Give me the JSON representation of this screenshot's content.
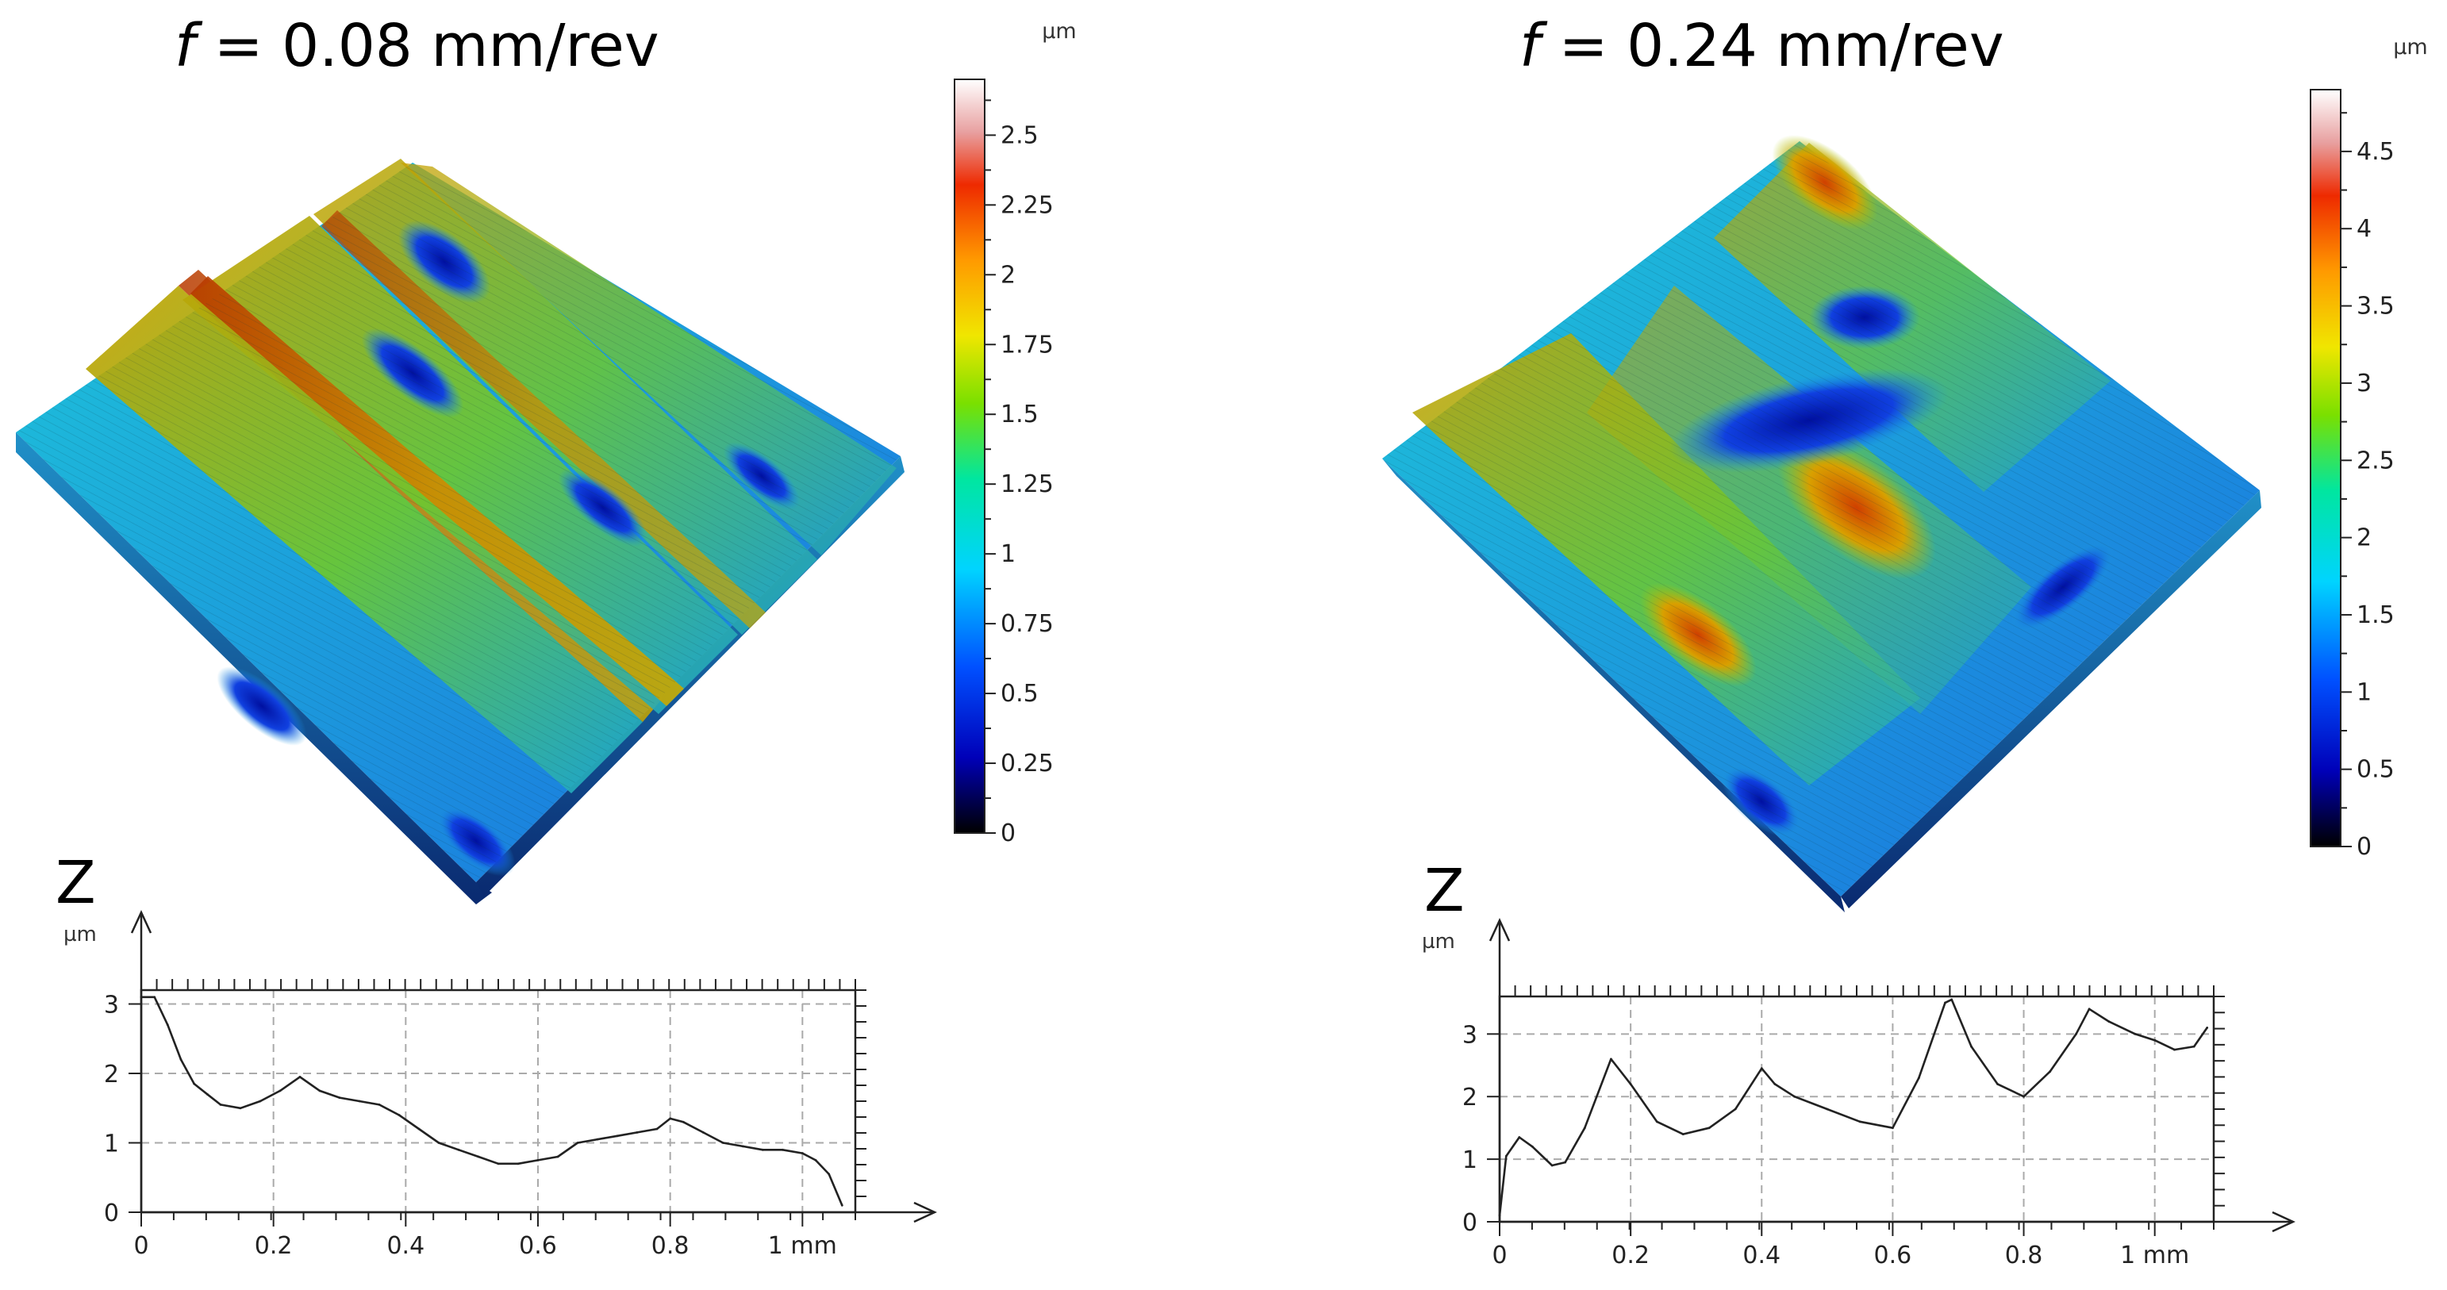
{
  "panels": [
    {
      "title_var": "f",
      "title_rest": " = 0.08 mm/rev",
      "colorbar": {
        "unit": "µm",
        "min": 0,
        "max": 2.7,
        "ticks": [
          0,
          0.25,
          0.5,
          0.75,
          1,
          1.25,
          1.5,
          1.75,
          2,
          2.25,
          2.5
        ],
        "tick_labels": [
          "0",
          "0.25",
          "0.5",
          "0.75",
          "1",
          "1.25",
          "1.5",
          "1.75",
          "2",
          "2.25",
          "2.5"
        ]
      },
      "surface": {
        "kind": "3d-surface-map",
        "ridges": 4,
        "peak_value": 2.1
      },
      "profile": {
        "axis_label": "Z",
        "y_unit": "µm",
        "xlim": [
          0,
          1.08
        ],
        "ylim": [
          0,
          3.2
        ],
        "x_ticks": [
          0,
          0.2,
          0.4,
          0.6,
          0.8,
          1
        ],
        "x_tick_labels": [
          "0",
          "0.2",
          "0.4",
          "0.6",
          "0.8",
          "1 mm"
        ],
        "y_ticks": [
          0,
          1,
          2,
          3
        ],
        "y_tick_labels": [
          "0",
          "1",
          "2",
          "3"
        ]
      }
    },
    {
      "title_var": "f",
      "title_rest": " = 0.24 mm/rev",
      "colorbar": {
        "unit": "µm",
        "min": 0,
        "max": 4.9,
        "ticks": [
          0,
          0.5,
          1,
          1.5,
          2,
          2.5,
          3,
          3.5,
          4,
          4.5
        ],
        "tick_labels": [
          "0",
          "0.5",
          "1",
          "1.5",
          "2",
          "2.5",
          "3",
          "3.5",
          "4",
          "4.5"
        ]
      },
      "surface": {
        "kind": "3d-surface-map",
        "ridges": 4,
        "peak_value": 4.2
      },
      "profile": {
        "axis_label": "Z",
        "y_unit": "µm",
        "xlim": [
          0,
          1.09
        ],
        "ylim": [
          0,
          3.6
        ],
        "x_ticks": [
          0,
          0.2,
          0.4,
          0.6,
          0.8,
          1
        ],
        "x_tick_labels": [
          "0",
          "0.2",
          "0.4",
          "0.6",
          "0.8",
          "1 mm"
        ],
        "y_ticks": [
          0,
          1,
          2,
          3
        ],
        "y_tick_labels": [
          "0",
          "1",
          "2",
          "3"
        ]
      }
    }
  ],
  "chart_data": [
    {
      "type": "line",
      "title": "f = 0.08 mm/rev",
      "xlabel": "mm",
      "ylabel": "Z (µm)",
      "xlim": [
        0,
        1.08
      ],
      "ylim": [
        0,
        3.2
      ],
      "grid": true,
      "x": [
        0,
        0.02,
        0.04,
        0.06,
        0.08,
        0.1,
        0.12,
        0.15,
        0.18,
        0.21,
        0.24,
        0.27,
        0.3,
        0.33,
        0.36,
        0.39,
        0.42,
        0.45,
        0.48,
        0.51,
        0.54,
        0.57,
        0.6,
        0.63,
        0.66,
        0.69,
        0.72,
        0.75,
        0.78,
        0.8,
        0.82,
        0.85,
        0.88,
        0.91,
        0.94,
        0.97,
        1.0,
        1.02,
        1.04,
        1.06
      ],
      "values": [
        3.1,
        3.1,
        2.7,
        2.2,
        1.85,
        1.7,
        1.55,
        1.5,
        1.6,
        1.75,
        1.95,
        1.75,
        1.65,
        1.6,
        1.55,
        1.4,
        1.2,
        1.0,
        0.9,
        0.8,
        0.7,
        0.7,
        0.75,
        0.8,
        1.0,
        1.05,
        1.1,
        1.15,
        1.2,
        1.35,
        1.3,
        1.15,
        1.0,
        0.95,
        0.9,
        0.9,
        0.85,
        0.75,
        0.55,
        0.1
      ]
    },
    {
      "type": "line",
      "title": "f = 0.24 mm/rev",
      "xlabel": "mm",
      "ylabel": "Z (µm)",
      "xlim": [
        0,
        1.09
      ],
      "ylim": [
        0,
        3.6
      ],
      "grid": true,
      "x": [
        0,
        0.01,
        0.03,
        0.05,
        0.08,
        0.1,
        0.13,
        0.17,
        0.2,
        0.24,
        0.28,
        0.32,
        0.36,
        0.4,
        0.42,
        0.45,
        0.5,
        0.55,
        0.6,
        0.64,
        0.68,
        0.69,
        0.72,
        0.76,
        0.8,
        0.84,
        0.88,
        0.9,
        0.93,
        0.97,
        1.0,
        1.03,
        1.06,
        1.08
      ],
      "values": [
        0.1,
        1.05,
        1.35,
        1.2,
        0.9,
        0.95,
        1.5,
        2.6,
        2.2,
        1.6,
        1.4,
        1.5,
        1.8,
        2.45,
        2.2,
        2.0,
        1.8,
        1.6,
        1.5,
        2.3,
        3.5,
        3.55,
        2.8,
        2.2,
        2.0,
        2.4,
        3.0,
        3.4,
        3.2,
        3.0,
        2.9,
        2.75,
        2.8,
        3.1
      ]
    }
  ]
}
